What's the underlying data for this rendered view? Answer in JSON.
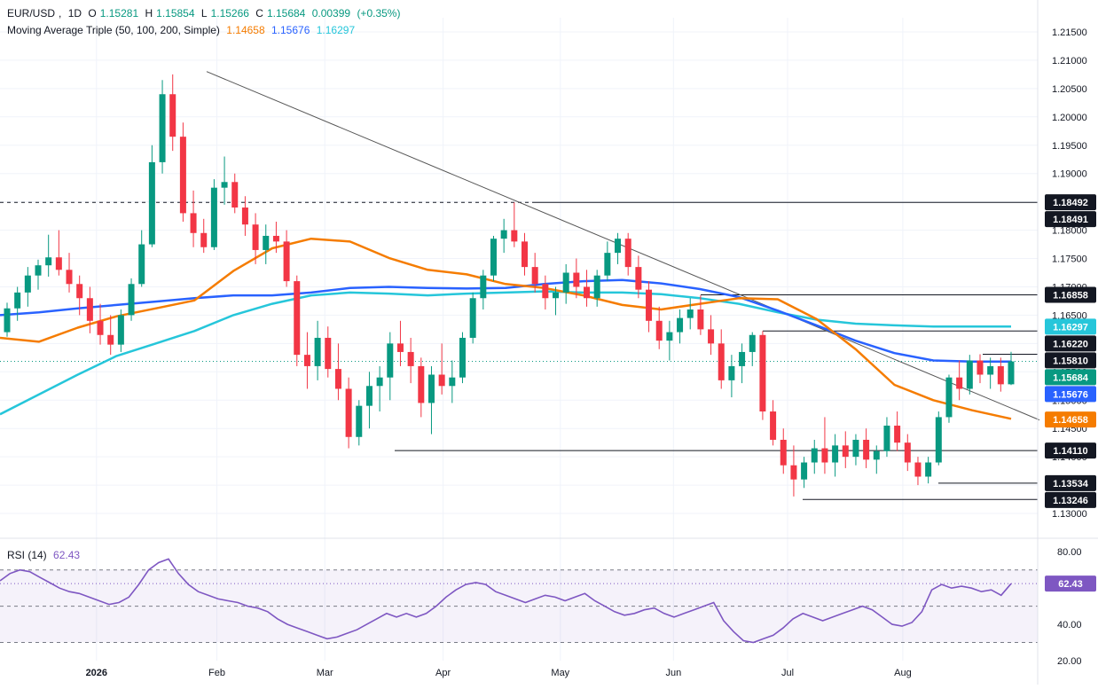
{
  "symbol": {
    "pair": "EUR/USD",
    "interval": "1D"
  },
  "ohlc": {
    "o_label": "O",
    "o": "1.15281",
    "h_label": "H",
    "h": "1.15854",
    "l_label": "L",
    "l": "1.15266",
    "c_label": "C",
    "c": "1.15684",
    "change": "0.00399",
    "change_pct": "(+0.35%)"
  },
  "ma_legend": {
    "label": "Moving Average Triple (50, 100, 200, Simple)",
    "ma50": "1.14658",
    "ma100": "1.15676",
    "ma200": "1.16297"
  },
  "rsi_legend": {
    "label": "RSI (14)",
    "value": "62.43"
  },
  "colors": {
    "up": "#089981",
    "down": "#F23645",
    "ma50": "#F57C00",
    "ma100": "#2962FF",
    "ma200": "#26C6DA",
    "rsi": "#7E57C2",
    "price_tag": "#089981",
    "grid": "#F0F3FA"
  },
  "price_axis": {
    "labels": [
      "1.21500",
      "1.21000",
      "1.20500",
      "1.20000",
      "1.19500",
      "1.19000",
      "1.18500",
      "1.18000",
      "1.17500",
      "1.17000",
      "1.16500",
      "1.16000",
      "1.15500",
      "1.15000",
      "1.14500",
      "1.14000",
      "1.13500",
      "1.13000"
    ],
    "tags": [
      {
        "text": "1.18492",
        "kind": "dark"
      },
      {
        "text": "1.18491",
        "kind": "dark"
      },
      {
        "text": "1.16858",
        "kind": "dark"
      },
      {
        "text": "1.16297",
        "kind": "ma200"
      },
      {
        "text": "1.16220",
        "kind": "dark"
      },
      {
        "text": "1.15810",
        "kind": "dark"
      },
      {
        "text": "1.15684",
        "kind": "last"
      },
      {
        "text": "1.15676",
        "kind": "ma100"
      },
      {
        "text": "1.14658",
        "kind": "ma50"
      },
      {
        "text": "1.14110",
        "kind": "dark"
      },
      {
        "text": "1.13534",
        "kind": "dark"
      },
      {
        "text": "1.13246",
        "kind": "dark"
      }
    ]
  },
  "rsi_axis": {
    "labels": [
      "80.00",
      "40.00",
      "20.00"
    ],
    "tag": "62.43"
  },
  "time_axis": {
    "labels": [
      "2026",
      "Feb",
      "Mar",
      "Apr",
      "May",
      "Jun",
      "Jul",
      "Aug"
    ]
  },
  "chart_data": {
    "type": "candlestick",
    "ylim": [
      1.1275,
      1.2175
    ],
    "levels": [
      1.1849,
      1.16858,
      1.1622,
      1.1581,
      1.1411,
      1.13534,
      1.13246
    ],
    "trendline": {
      "from": [
        0,
        1.208
      ],
      "to": [
        1,
        1.1465
      ]
    },
    "ma50": [
      1.161,
      1.1603,
      1.1628,
      1.1648,
      1.1662,
      1.1676,
      1.1728,
      1.1768,
      1.1785,
      1.178,
      1.1751,
      1.173,
      1.1722,
      1.1705,
      1.1698,
      1.1685,
      1.1668,
      1.166,
      1.167,
      1.168,
      1.1678,
      1.1643,
      1.159,
      1.1527,
      1.15,
      1.1482,
      1.1467
    ],
    "ma100": [
      1.165,
      1.1655,
      1.1662,
      1.1668,
      1.1674,
      1.168,
      1.1685,
      1.1685,
      1.169,
      1.1698,
      1.17,
      1.1698,
      1.1697,
      1.1698,
      1.1705,
      1.171,
      1.1712,
      1.1706,
      1.1696,
      1.1682,
      1.1658,
      1.1632,
      1.1605,
      1.1583,
      1.157,
      1.1568,
      1.1568
    ],
    "ma200": [
      1.1475,
      1.151,
      1.1545,
      1.1578,
      1.16,
      1.1622,
      1.165,
      1.167,
      1.1685,
      1.169,
      1.1688,
      1.1685,
      1.1688,
      1.169,
      1.1692,
      1.169,
      1.169,
      1.1687,
      1.168,
      1.167,
      1.1655,
      1.1642,
      1.1635,
      1.1632,
      1.163,
      1.163,
      1.163
    ],
    "candles": [
      [
        1.162,
        1.1672,
        1.1612,
        1.1662
      ],
      [
        1.1662,
        1.17,
        1.164,
        1.169
      ],
      [
        1.169,
        1.1735,
        1.1665,
        1.172
      ],
      [
        1.172,
        1.1748,
        1.1695,
        1.1738
      ],
      [
        1.1738,
        1.1792,
        1.1718,
        1.1752
      ],
      [
        1.1752,
        1.18,
        1.172,
        1.173
      ],
      [
        1.173,
        1.176,
        1.169,
        1.1705
      ],
      [
        1.1705,
        1.172,
        1.165,
        1.168
      ],
      [
        1.168,
        1.17,
        1.1618,
        1.164
      ],
      [
        1.164,
        1.167,
        1.1598,
        1.1615
      ],
      [
        1.1615,
        1.165,
        1.158,
        1.1598
      ],
      [
        1.1598,
        1.166,
        1.1585,
        1.165
      ],
      [
        1.165,
        1.1715,
        1.164,
        1.1705
      ],
      [
        1.1705,
        1.18,
        1.17,
        1.1775
      ],
      [
        1.1775,
        1.195,
        1.177,
        1.192
      ],
      [
        1.192,
        1.2065,
        1.19,
        1.204
      ],
      [
        1.204,
        1.2075,
        1.194,
        1.1965
      ],
      [
        1.1965,
        1.199,
        1.1815,
        1.183
      ],
      [
        1.183,
        1.187,
        1.177,
        1.1795
      ],
      [
        1.1795,
        1.182,
        1.176,
        1.177
      ],
      [
        1.177,
        1.189,
        1.1765,
        1.1875
      ],
      [
        1.1875,
        1.193,
        1.1845,
        1.1885
      ],
      [
        1.1885,
        1.19,
        1.183,
        1.184
      ],
      [
        1.184,
        1.186,
        1.179,
        1.181
      ],
      [
        1.181,
        1.183,
        1.174,
        1.1765
      ],
      [
        1.1765,
        1.181,
        1.174,
        1.179
      ],
      [
        1.179,
        1.1815,
        1.176,
        1.178
      ],
      [
        1.178,
        1.18,
        1.17,
        1.171
      ],
      [
        1.171,
        1.172,
        1.156,
        1.158
      ],
      [
        1.158,
        1.162,
        1.152,
        1.156
      ],
      [
        1.156,
        1.164,
        1.1535,
        1.161
      ],
      [
        1.161,
        1.163,
        1.154,
        1.1555
      ],
      [
        1.1555,
        1.16,
        1.15,
        1.152
      ],
      [
        1.152,
        1.154,
        1.1415,
        1.1435
      ],
      [
        1.1435,
        1.15,
        1.142,
        1.149
      ],
      [
        1.149,
        1.155,
        1.145,
        1.1525
      ],
      [
        1.1525,
        1.156,
        1.148,
        1.154
      ],
      [
        1.154,
        1.162,
        1.15,
        1.16
      ],
      [
        1.16,
        1.164,
        1.156,
        1.1585
      ],
      [
        1.1585,
        1.161,
        1.153,
        1.156
      ],
      [
        1.156,
        1.1575,
        1.147,
        1.1495
      ],
      [
        1.1495,
        1.156,
        1.144,
        1.1545
      ],
      [
        1.1545,
        1.16,
        1.151,
        1.1525
      ],
      [
        1.1525,
        1.157,
        1.1495,
        1.154
      ],
      [
        1.154,
        1.162,
        1.153,
        1.161
      ],
      [
        1.161,
        1.169,
        1.16,
        1.168
      ],
      [
        1.168,
        1.173,
        1.166,
        1.172
      ],
      [
        1.172,
        1.179,
        1.171,
        1.1785
      ],
      [
        1.1785,
        1.182,
        1.176,
        1.18
      ],
      [
        1.18,
        1.1849,
        1.177,
        1.178
      ],
      [
        1.178,
        1.1795,
        1.172,
        1.1735
      ],
      [
        1.1735,
        1.176,
        1.169,
        1.1705
      ],
      [
        1.1705,
        1.172,
        1.166,
        1.168
      ],
      [
        1.168,
        1.17,
        1.165,
        1.169
      ],
      [
        1.169,
        1.174,
        1.167,
        1.1725
      ],
      [
        1.1725,
        1.175,
        1.168,
        1.17
      ],
      [
        1.17,
        1.173,
        1.1665,
        1.168
      ],
      [
        1.168,
        1.173,
        1.1665,
        1.172
      ],
      [
        1.172,
        1.178,
        1.171,
        1.176
      ],
      [
        1.176,
        1.1795,
        1.174,
        1.1785
      ],
      [
        1.1785,
        1.1795,
        1.172,
        1.1735
      ],
      [
        1.1735,
        1.1755,
        1.168,
        1.1695
      ],
      [
        1.1695,
        1.171,
        1.162,
        1.164
      ],
      [
        1.164,
        1.1665,
        1.159,
        1.1605
      ],
      [
        1.1605,
        1.164,
        1.157,
        1.162
      ],
      [
        1.162,
        1.166,
        1.16,
        1.1645
      ],
      [
        1.1645,
        1.168,
        1.1625,
        1.166
      ],
      [
        1.166,
        1.1685,
        1.1615,
        1.1625
      ],
      [
        1.1625,
        1.165,
        1.158,
        1.16
      ],
      [
        1.16,
        1.1625,
        1.152,
        1.1535
      ],
      [
        1.1535,
        1.158,
        1.1505,
        1.156
      ],
      [
        1.156,
        1.16,
        1.153,
        1.1585
      ],
      [
        1.1585,
        1.162,
        1.156,
        1.1615
      ],
      [
        1.1615,
        1.1622,
        1.1465,
        1.148
      ],
      [
        1.148,
        1.15,
        1.142,
        1.143
      ],
      [
        1.143,
        1.145,
        1.137,
        1.1385
      ],
      [
        1.1385,
        1.142,
        1.133,
        1.136
      ],
      [
        1.136,
        1.14,
        1.1345,
        1.139
      ],
      [
        1.139,
        1.143,
        1.137,
        1.1415
      ],
      [
        1.1415,
        1.147,
        1.137,
        1.139
      ],
      [
        1.139,
        1.144,
        1.1365,
        1.142
      ],
      [
        1.142,
        1.1445,
        1.138,
        1.14
      ],
      [
        1.14,
        1.144,
        1.1385,
        1.143
      ],
      [
        1.143,
        1.145,
        1.138,
        1.1395
      ],
      [
        1.1395,
        1.142,
        1.137,
        1.141
      ],
      [
        1.141,
        1.147,
        1.14,
        1.1455
      ],
      [
        1.1455,
        1.148,
        1.141,
        1.1425
      ],
      [
        1.1425,
        1.144,
        1.1375,
        1.139
      ],
      [
        1.139,
        1.14,
        1.135,
        1.1365
      ],
      [
        1.1365,
        1.14,
        1.1353,
        1.139
      ],
      [
        1.139,
        1.148,
        1.1385,
        1.147
      ],
      [
        1.147,
        1.1545,
        1.146,
        1.154
      ],
      [
        1.154,
        1.157,
        1.15,
        1.152
      ],
      [
        1.152,
        1.158,
        1.151,
        1.157
      ],
      [
        1.157,
        1.1581,
        1.153,
        1.1545
      ],
      [
        1.1545,
        1.1575,
        1.152,
        1.156
      ],
      [
        1.156,
        1.1575,
        1.1515,
        1.1528
      ],
      [
        1.1528,
        1.15854,
        1.15266,
        1.15684
      ]
    ],
    "rsi": [
      64,
      68,
      70,
      69,
      66,
      63,
      60,
      58,
      57,
      55,
      53,
      51,
      52,
      55,
      62,
      70,
      74,
      76,
      68,
      62,
      58,
      56,
      54,
      53,
      52,
      50,
      49,
      47,
      43,
      40,
      38,
      36,
      34,
      32,
      33,
      35,
      37,
      40,
      43,
      46,
      44,
      46,
      44,
      46,
      50,
      55,
      59,
      62,
      63,
      62,
      58,
      56,
      54,
      52,
      54,
      56,
      55,
      53,
      55,
      57,
      53,
      50,
      47,
      45,
      46,
      48,
      49,
      46,
      44,
      46,
      48,
      50,
      52,
      42,
      36,
      31,
      30,
      32,
      34,
      38,
      43,
      46,
      44,
      42,
      44,
      46,
      48,
      50,
      48,
      44,
      40,
      39,
      41,
      47,
      59,
      62,
      60,
      61,
      60,
      58,
      59,
      56,
      62.43
    ],
    "rsi_ylim": [
      20,
      85
    ],
    "rsi_lines": [
      70,
      62.43,
      50,
      30
    ]
  }
}
